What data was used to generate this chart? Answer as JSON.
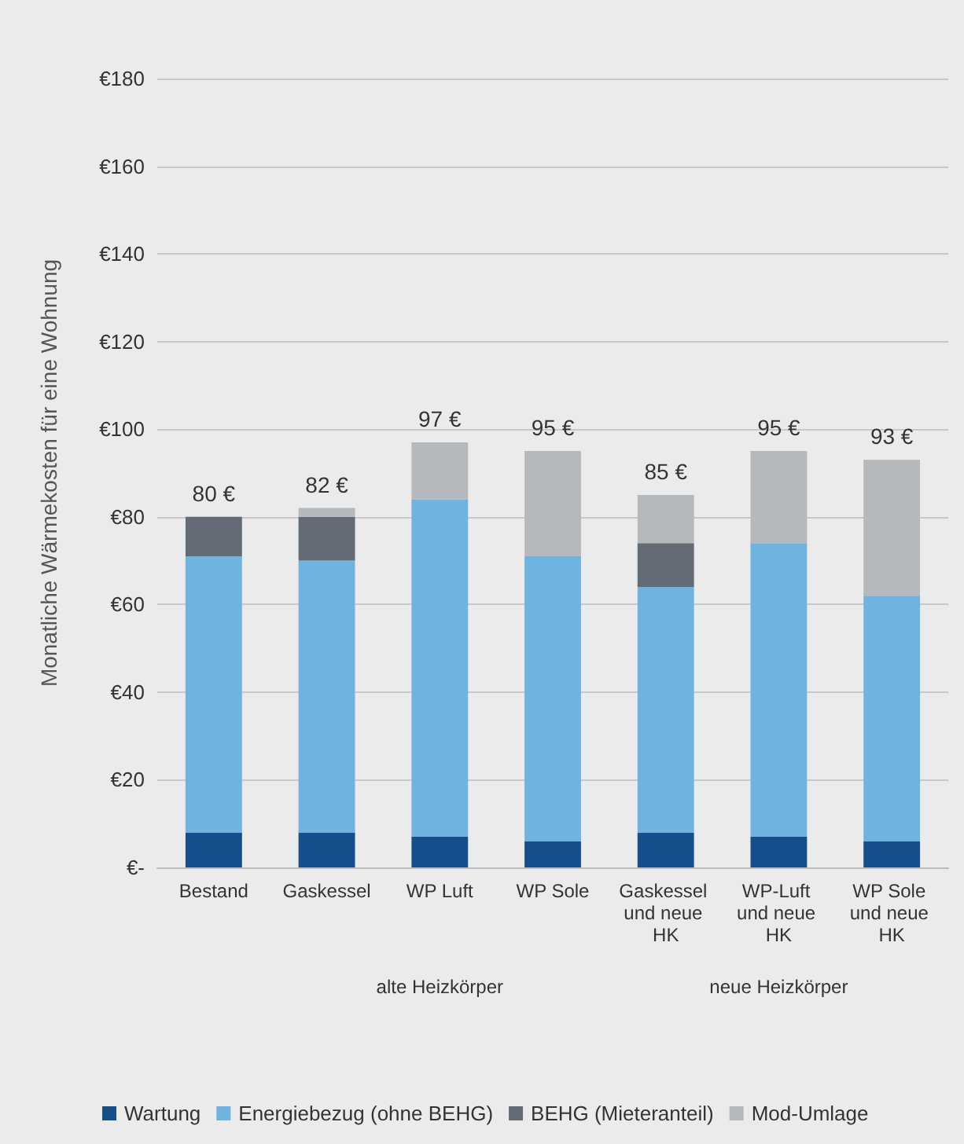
{
  "chart_data": {
    "type": "bar",
    "stacked": true,
    "categories": [
      "Bestand",
      "Gaskessel",
      "WP Luft",
      "WP Sole",
      "Gaskessel und neue HK",
      "WP-Luft und neue HK",
      "WP Sole und neue HK"
    ],
    "series": [
      {
        "name": "Wartung",
        "color": "#174f8c",
        "values": [
          8,
          8,
          7,
          6,
          8,
          7,
          6
        ]
      },
      {
        "name": "Energiebezug (ohne BEHG)",
        "color": "#6fb4e0",
        "values": [
          63,
          62,
          77,
          65,
          56,
          67,
          56
        ]
      },
      {
        "name": "BEHG (Mieteranteil)",
        "color": "#636b75",
        "values": [
          9,
          10,
          0,
          0,
          10,
          0,
          0
        ]
      },
      {
        "name": "Mod-Umlage",
        "color": "#b5b9bc",
        "values": [
          0,
          2,
          13,
          24,
          11,
          21,
          31
        ]
      }
    ],
    "totals": [
      "80 €",
      "82 €",
      "97 €",
      "95 €",
      "85 €",
      "95 €",
      "93 €"
    ],
    "ylabel": "Monatliche Wärmekosten für eine Wohnung",
    "ylim": [
      0,
      180
    ],
    "yticks": [
      {
        "value": 0,
        "label": "€-"
      },
      {
        "value": 20,
        "label": "€20"
      },
      {
        "value": 40,
        "label": "€40"
      },
      {
        "value": 60,
        "label": "€60"
      },
      {
        "value": 80,
        "label": "€80"
      },
      {
        "value": 100,
        "label": "€100"
      },
      {
        "value": 120,
        "label": "€120"
      },
      {
        "value": 140,
        "label": "€140"
      },
      {
        "value": 160,
        "label": "€160"
      },
      {
        "value": 180,
        "label": "€180"
      }
    ],
    "annotations": [
      "alte Heizkörper",
      "neue Heizkörper"
    ],
    "grid": "y",
    "legend": "bottom"
  }
}
